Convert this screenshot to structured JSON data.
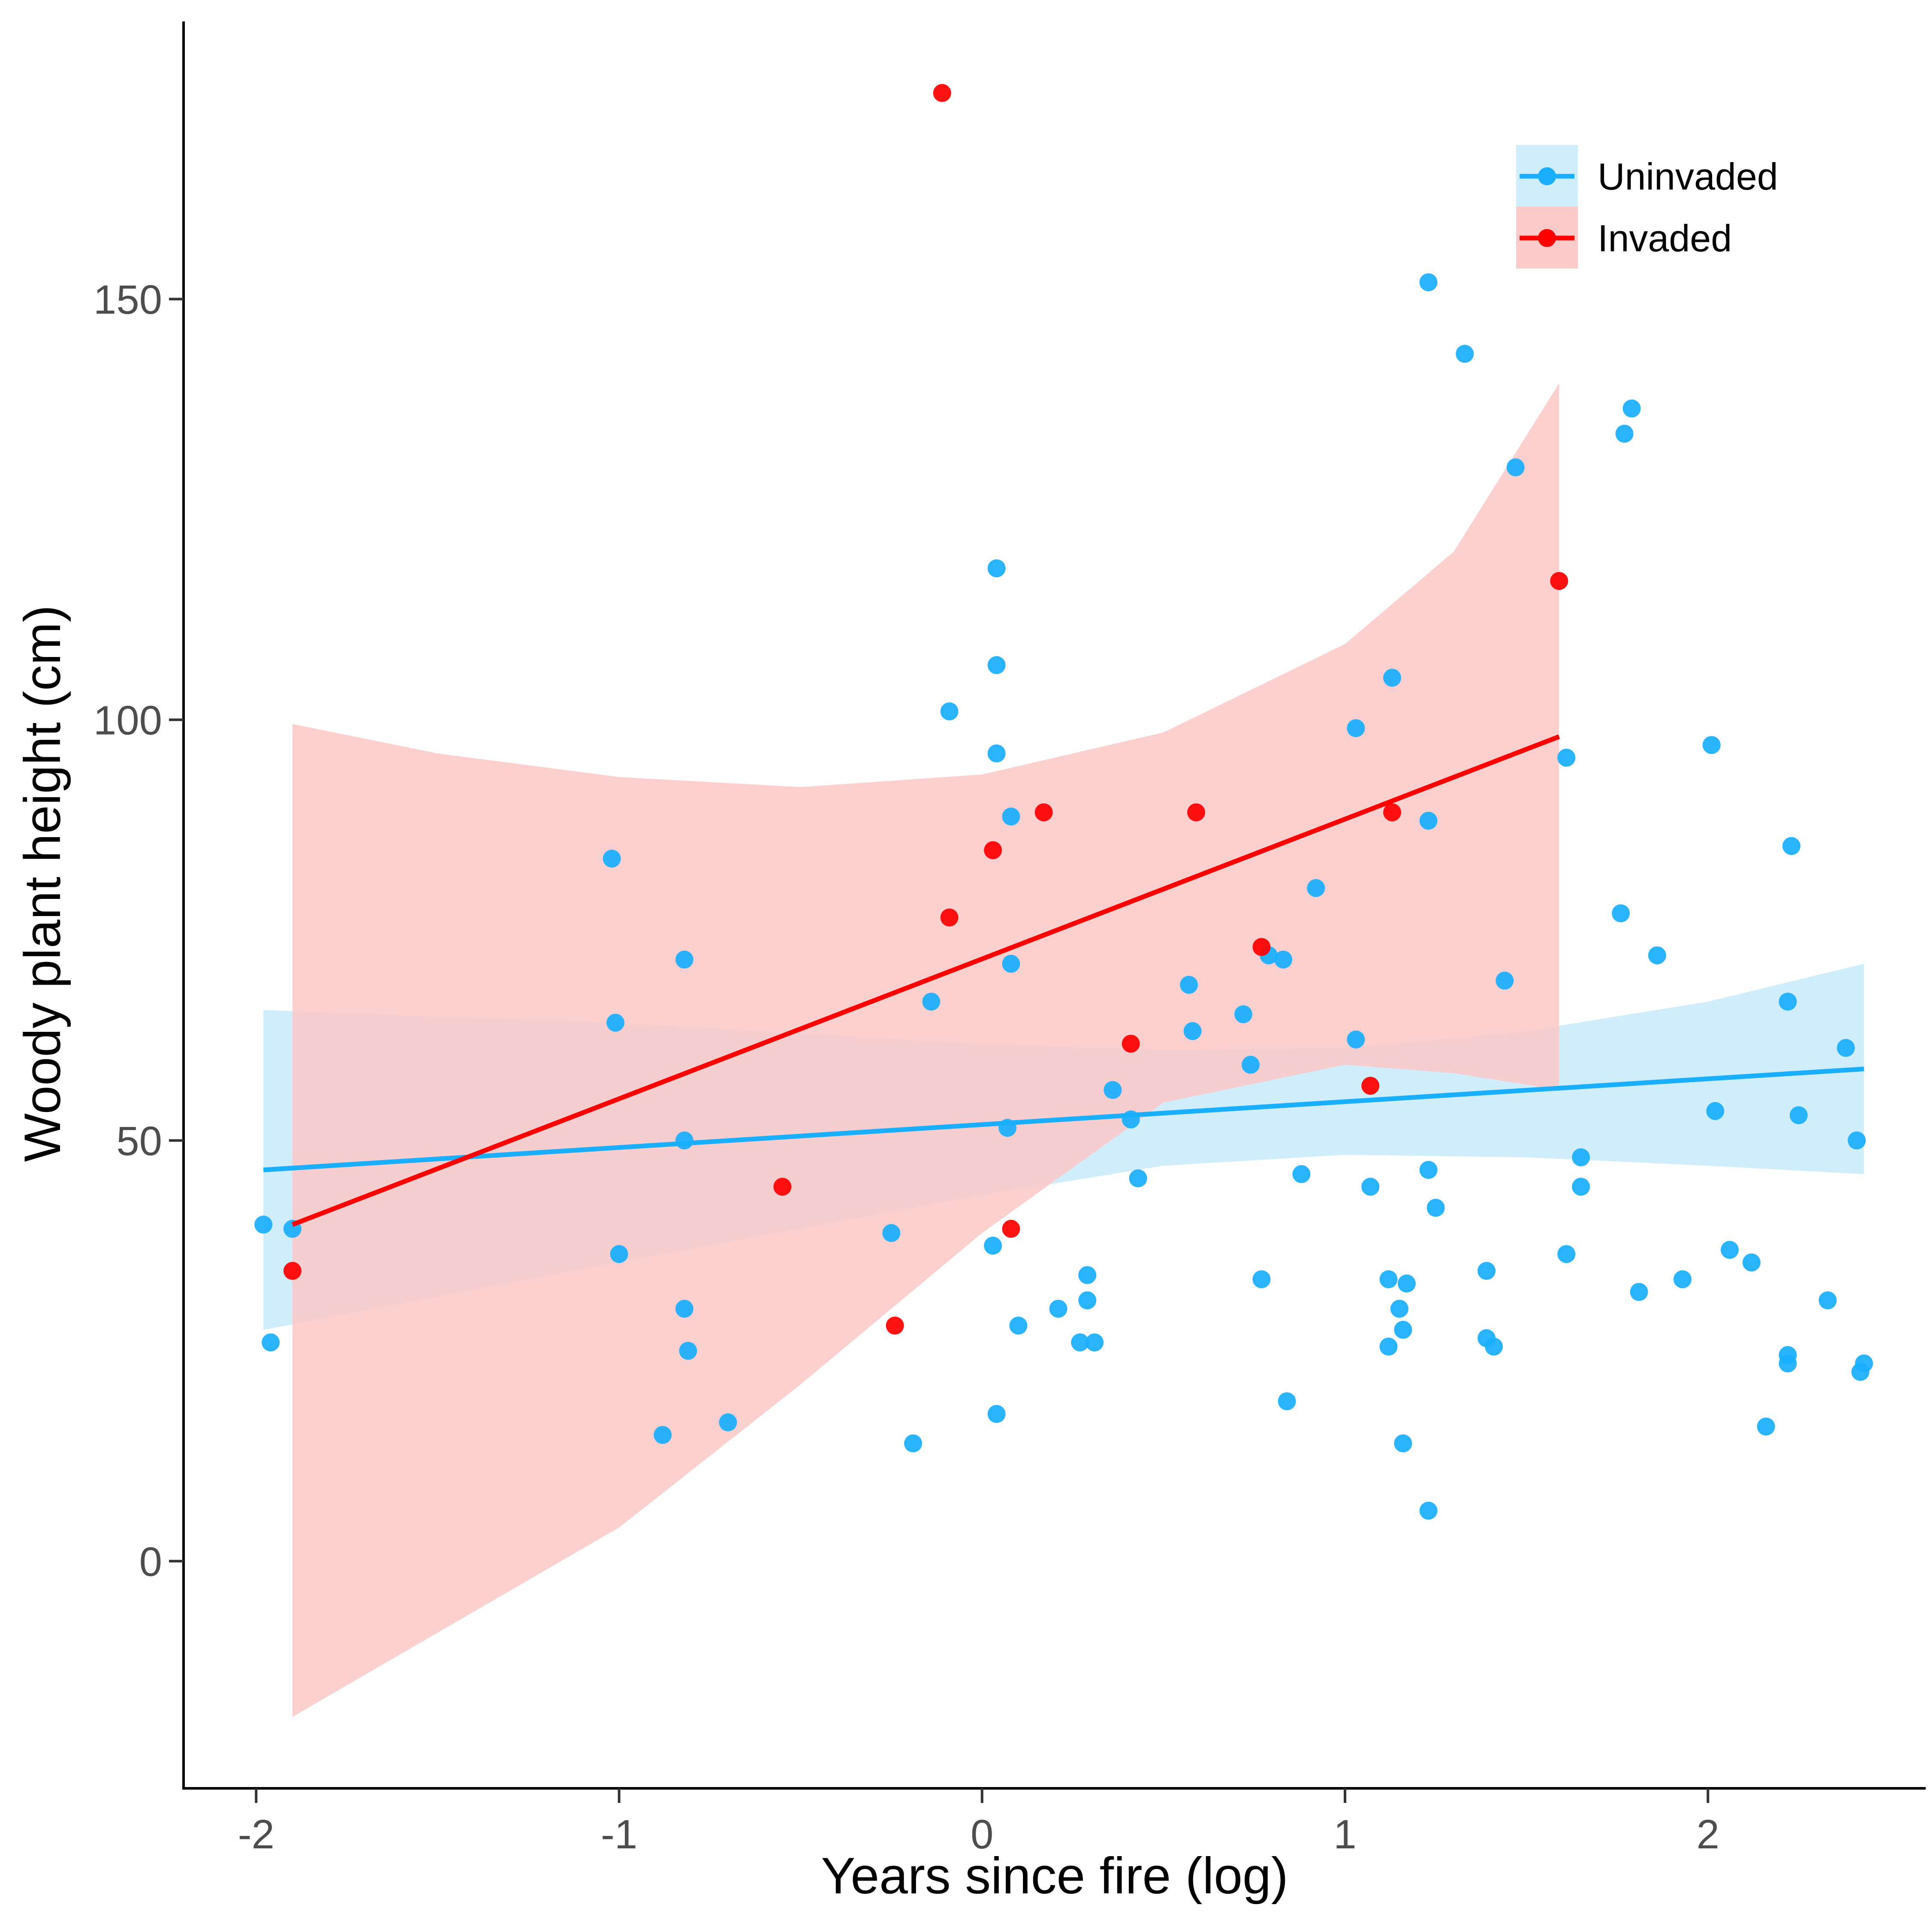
{
  "chart_data": {
    "type": "scatter",
    "title": "",
    "xlabel": "Years since fire (log)",
    "ylabel": "Woody plant height (cm)",
    "xlim": [
      -2.2,
      2.6
    ],
    "ylim": [
      -27,
      183
    ],
    "xticks": [
      -2,
      -1,
      0,
      1,
      2
    ],
    "yticks": [
      0,
      50,
      100,
      150
    ],
    "grid": false,
    "legend_position": "top-right",
    "series": [
      {
        "name": "Uninvaded",
        "color": "#1AAEFF",
        "band_color": "#CFEDFB",
        "fit": {
          "x": [
            -1.98,
            2.43
          ],
          "y": [
            46.5,
            58.5
          ]
        },
        "ci_upper": [
          [
            -1.98,
            65.5
          ],
          [
            -1.0,
            64.0
          ],
          [
            0.0,
            61.5
          ],
          [
            0.5,
            60.8
          ],
          [
            1.0,
            61.0
          ],
          [
            1.5,
            63.0
          ],
          [
            2.0,
            66.5
          ],
          [
            2.43,
            71.0
          ]
        ],
        "ci_lower": [
          [
            -1.98,
            27.5
          ],
          [
            -1.0,
            35.5
          ],
          [
            0.0,
            43.5
          ],
          [
            0.5,
            47.0
          ],
          [
            1.0,
            48.3
          ],
          [
            1.5,
            48.0
          ],
          [
            2.0,
            47.0
          ],
          [
            2.43,
            46.0
          ]
        ],
        "points": [
          [
            -1.98,
            40
          ],
          [
            -1.96,
            26
          ],
          [
            -1.9,
            39.5
          ],
          [
            -1.02,
            83.5
          ],
          [
            -1.01,
            64
          ],
          [
            -1.0,
            36.5
          ],
          [
            -0.82,
            71.5
          ],
          [
            -0.82,
            50
          ],
          [
            -0.82,
            30
          ],
          [
            -0.81,
            25
          ],
          [
            -0.88,
            15
          ],
          [
            -0.7,
            16.5
          ],
          [
            -0.25,
            39
          ],
          [
            -0.19,
            14
          ],
          [
            -0.14,
            66.5
          ],
          [
            -0.09,
            101
          ],
          [
            0.03,
            37.5
          ],
          [
            0.04,
            17.5
          ],
          [
            0.04,
            118
          ],
          [
            0.04,
            106.5
          ],
          [
            0.04,
            96
          ],
          [
            0.08,
            88.5
          ],
          [
            0.08,
            71
          ],
          [
            0.07,
            51.5
          ],
          [
            0.1,
            28
          ],
          [
            0.21,
            30
          ],
          [
            0.27,
            26
          ],
          [
            0.29,
            34
          ],
          [
            0.29,
            31
          ],
          [
            0.31,
            26
          ],
          [
            0.36,
            56
          ],
          [
            0.41,
            52.5
          ],
          [
            0.43,
            45.5
          ],
          [
            0.57,
            68.5
          ],
          [
            0.58,
            63
          ],
          [
            0.72,
            65
          ],
          [
            0.74,
            59
          ],
          [
            0.77,
            33.5
          ],
          [
            0.79,
            72
          ],
          [
            0.83,
            71.5
          ],
          [
            0.84,
            19
          ],
          [
            0.88,
            46
          ],
          [
            0.92,
            80
          ],
          [
            1.03,
            99
          ],
          [
            1.03,
            62
          ],
          [
            1.07,
            44.5
          ],
          [
            1.12,
            25.5
          ],
          [
            1.12,
            33.5
          ],
          [
            1.13,
            105
          ],
          [
            1.15,
            30
          ],
          [
            1.16,
            27.5
          ],
          [
            1.17,
            33
          ],
          [
            1.16,
            14
          ],
          [
            1.23,
            152
          ],
          [
            1.23,
            88
          ],
          [
            1.23,
            46.5
          ],
          [
            1.23,
            6
          ],
          [
            1.25,
            42
          ],
          [
            1.33,
            143.5
          ],
          [
            1.39,
            34.5
          ],
          [
            1.39,
            26.5
          ],
          [
            1.41,
            25.5
          ],
          [
            1.44,
            69
          ],
          [
            1.47,
            130
          ],
          [
            1.61,
            95.5
          ],
          [
            1.61,
            36.5
          ],
          [
            1.65,
            48
          ],
          [
            1.65,
            44.5
          ],
          [
            1.76,
            77
          ],
          [
            1.77,
            134
          ],
          [
            1.79,
            137
          ],
          [
            1.81,
            32
          ],
          [
            1.86,
            72
          ],
          [
            1.93,
            33.5
          ],
          [
            2.01,
            97
          ],
          [
            2.02,
            53.5
          ],
          [
            2.06,
            37
          ],
          [
            2.12,
            35.5
          ],
          [
            2.16,
            16
          ],
          [
            2.22,
            24.5
          ],
          [
            2.22,
            66.5
          ],
          [
            2.22,
            23.5
          ],
          [
            2.23,
            85
          ],
          [
            2.25,
            53
          ],
          [
            2.33,
            31
          ],
          [
            2.38,
            61
          ],
          [
            2.41,
            50
          ],
          [
            2.42,
            22.5
          ],
          [
            2.43,
            23.5
          ]
        ]
      },
      {
        "name": "Invaded",
        "color": "#FF0000",
        "band_color": "#FDCACA",
        "fit": {
          "x": [
            -1.9,
            1.59
          ],
          "y": [
            40,
            98
          ]
        },
        "ci_upper": [
          [
            -1.9,
            99.5
          ],
          [
            -1.5,
            96.0
          ],
          [
            -1.0,
            93.2
          ],
          [
            -0.5,
            92.0
          ],
          [
            0.0,
            93.5
          ],
          [
            0.5,
            98.5
          ],
          [
            1.0,
            109.0
          ],
          [
            1.3,
            120.0
          ],
          [
            1.59,
            140.0
          ]
        ],
        "ci_lower": [
          [
            -1.9,
            -18.5
          ],
          [
            -1.0,
            4.0
          ],
          [
            -0.5,
            21.0
          ],
          [
            0.0,
            39.0
          ],
          [
            0.5,
            54.5
          ],
          [
            1.0,
            59.0
          ],
          [
            1.3,
            58.0
          ],
          [
            1.59,
            56.0
          ]
        ],
        "points": [
          [
            -1.9,
            34.5
          ],
          [
            -0.55,
            44.5
          ],
          [
            -0.24,
            28
          ],
          [
            -0.11,
            174.5
          ],
          [
            -0.09,
            76.5
          ],
          [
            0.03,
            84.5
          ],
          [
            0.08,
            39.5
          ],
          [
            0.17,
            89
          ],
          [
            0.41,
            61.5
          ],
          [
            0.59,
            89
          ],
          [
            0.77,
            73
          ],
          [
            1.07,
            56.5
          ],
          [
            1.13,
            89
          ],
          [
            1.59,
            116.5
          ]
        ]
      }
    ]
  }
}
